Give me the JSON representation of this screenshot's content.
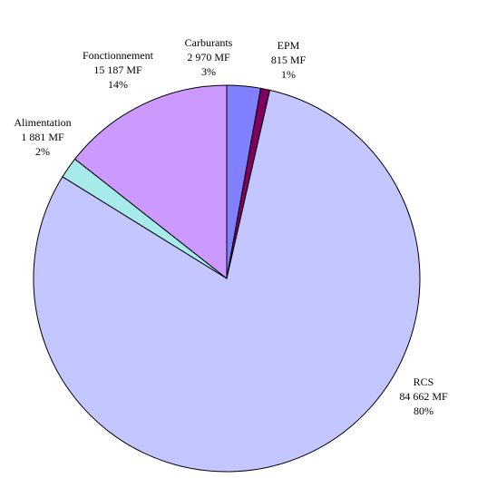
{
  "chart_data": {
    "type": "pie",
    "title": "",
    "unit": "MF",
    "slices": [
      {
        "name": "Carburants",
        "value_label": "2 970 MF",
        "value": 2970,
        "percent_label": "3%",
        "color": "#8080ff"
      },
      {
        "name": "EPM",
        "value_label": "815 MF",
        "value": 815,
        "percent_label": "1%",
        "color": "#800060"
      },
      {
        "name": "RCS",
        "value_label": "84 662 MF",
        "value": 84662,
        "percent_label": "80%",
        "color": "#c4c6ff"
      },
      {
        "name": "Alimentation",
        "value_label": "1 881 MF",
        "value": 1881,
        "percent_label": "2%",
        "color": "#a6eaea"
      },
      {
        "name": "Fonctionnement",
        "value_label": "15 187 MF",
        "value": 15187,
        "percent_label": "14%",
        "color": "#cc99ff"
      }
    ]
  }
}
